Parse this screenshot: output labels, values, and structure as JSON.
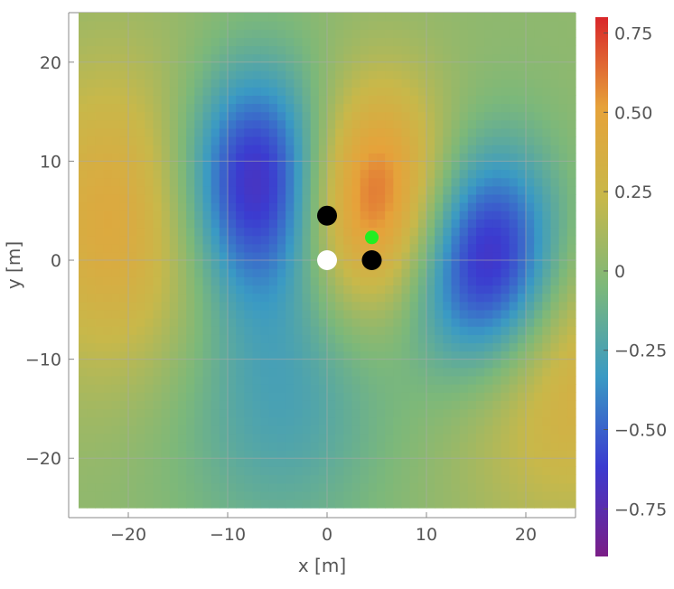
{
  "chart_data": {
    "type": "heatmap",
    "title": "",
    "xlabel": "x [m]",
    "ylabel": "y [m]",
    "xlim": [
      -26,
      25
    ],
    "ylim": [
      -26,
      25
    ],
    "data_range": [
      -25,
      25
    ],
    "x_ticks": [
      -20,
      -10,
      0,
      10,
      20
    ],
    "y_ticks": [
      -20,
      -10,
      0,
      10,
      20
    ],
    "x_tick_labels": [
      "−20",
      "−10",
      "0",
      "10",
      "20"
    ],
    "y_tick_labels": [
      "−20",
      "−10",
      "0",
      "10",
      "20"
    ],
    "grid": true,
    "colorbar": {
      "range": [
        -0.9,
        0.8
      ],
      "ticks": [
        0.75,
        0.5,
        0.25,
        0,
        -0.25,
        -0.5,
        -0.75
      ],
      "tick_labels": [
        "0.75",
        "0.50",
        "0.25",
        "0",
        "−0.25",
        "−0.50",
        "−0.75"
      ],
      "placement": "right"
    },
    "field_features": [
      {
        "kind": "peak",
        "x": 4.5,
        "y": 6,
        "value": 0.8
      },
      {
        "kind": "trough",
        "x": -7,
        "y": 8,
        "value": -0.85
      },
      {
        "kind": "trough",
        "x": 16,
        "y": 0,
        "value": -0.9
      },
      {
        "kind": "peak",
        "x": -20,
        "y": 4,
        "value": 0.45
      },
      {
        "kind": "peak",
        "x": 24,
        "y": -10,
        "value": 0.4
      },
      {
        "kind": "trough",
        "x": -5,
        "y": -13,
        "value": -0.3
      }
    ],
    "markers": [
      {
        "x": 0,
        "y": 4.5,
        "color": "#000000",
        "size": "large"
      },
      {
        "x": 4.5,
        "y": 0,
        "color": "#000000",
        "size": "large"
      },
      {
        "x": 0,
        "y": 0,
        "color": "#ffffff",
        "size": "large"
      },
      {
        "x": 4.5,
        "y": 2.3,
        "color": "#22ee22",
        "size": "small"
      }
    ],
    "colors": {
      "grid": "#aaaaaa",
      "frame": "#888888",
      "palette": [
        "#7b1e87",
        "#3b3bd0",
        "#3a9ac4",
        "#7cb87a",
        "#c8b84a",
        "#e6a23a",
        "#d9262a"
      ]
    }
  }
}
